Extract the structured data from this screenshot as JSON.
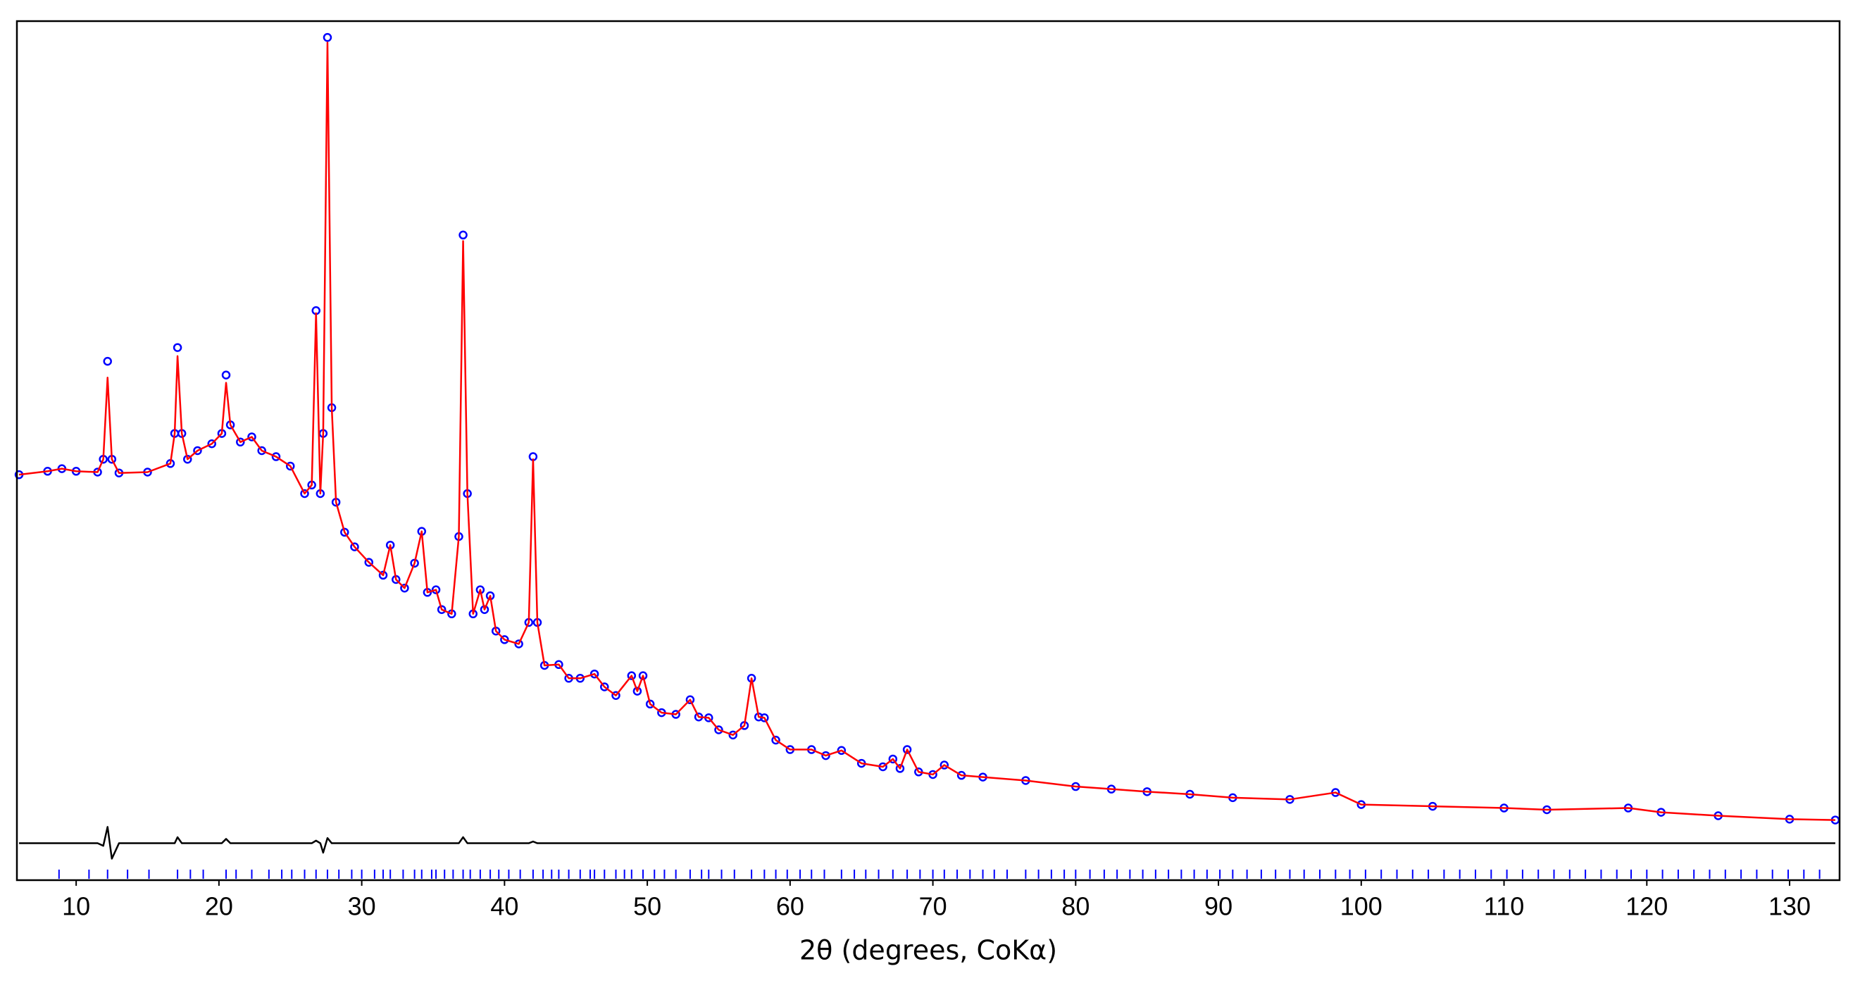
{
  "chart_data": {
    "type": "rietveld",
    "x_label": "2θ (degrees, CoKα)",
    "xlim": [
      5.85,
      133.5
    ],
    "xticks": [
      10,
      20,
      30,
      40,
      50,
      60,
      70,
      80,
      90,
      100,
      110,
      120,
      130
    ],
    "ylim": [
      0,
      100
    ],
    "x": [
      6,
      8,
      9,
      10,
      11.5,
      11.9,
      12.2,
      12.5,
      13,
      15,
      16.6,
      16.9,
      17.1,
      17.4,
      17.8,
      18.5,
      19.5,
      20.2,
      20.5,
      20.8,
      21.5,
      22.3,
      23,
      24,
      25,
      26,
      26.5,
      26.8,
      27.1,
      27.3,
      27.6,
      27.9,
      28.2,
      28.8,
      29.5,
      30.5,
      31.5,
      32.0,
      32.4,
      33,
      33.7,
      34.2,
      34.6,
      35.2,
      35.6,
      36.3,
      36.8,
      37.1,
      37.4,
      37.8,
      38.3,
      38.6,
      39.0,
      39.4,
      40,
      41,
      41.7,
      42.0,
      42.3,
      42.8,
      43.8,
      44.5,
      45.3,
      46.3,
      47,
      47.8,
      48.9,
      49.3,
      49.7,
      50.2,
      51,
      52,
      53.0,
      53.6,
      54.3,
      55,
      56,
      56.8,
      57.3,
      57.8,
      58.2,
      59,
      60,
      61.5,
      62.5,
      63.6,
      65,
      66.5,
      67.2,
      67.7,
      68.2,
      69,
      70,
      70.8,
      72,
      73.5,
      76.5,
      80,
      82.5,
      85,
      88,
      91,
      95,
      98.2,
      100,
      105,
      110,
      113,
      118.7,
      121,
      125,
      130,
      133.2
    ],
    "series": [
      {
        "style": "circles",
        "color": "#0000ff",
        "values": [
          47.2,
          47.6,
          47.9,
          47.6,
          47.5,
          49,
          60.4,
          49,
          47.4,
          47.5,
          48.5,
          52,
          62.0,
          52,
          49,
          50,
          50.8,
          52,
          58.8,
          53,
          51,
          51.6,
          50,
          49.3,
          48.2,
          45,
          46,
          66.3,
          45,
          52,
          98.1,
          55,
          44,
          40.5,
          38.8,
          37,
          35.5,
          39.0,
          35,
          34,
          36.9,
          40.6,
          33.5,
          33.8,
          31.5,
          31,
          40,
          75.1,
          45,
          31,
          33.8,
          31.5,
          33.1,
          29,
          28,
          27.5,
          30,
          49.3,
          30,
          25,
          25.1,
          23.5,
          23.5,
          24.0,
          22.5,
          21.5,
          23.8,
          22,
          23.8,
          20.5,
          19.5,
          19.3,
          21.0,
          19,
          18.9,
          17.5,
          16.9,
          18,
          23.5,
          19,
          18.9,
          16.3,
          15.2,
          15.2,
          14.5,
          15.1,
          13.6,
          13.2,
          14.1,
          13,
          15.2,
          12.6,
          12.3,
          13.4,
          12.2,
          12.0,
          11.6,
          10.9,
          10.6,
          10.3,
          10,
          9.6,
          9.4,
          10.2,
          8.8,
          8.6,
          8.4,
          8.2,
          8.4,
          7.9,
          7.5,
          7.1,
          7.0
        ]
      },
      {
        "style": "line",
        "color": "#ff0000",
        "values": [
          47.2,
          47.6,
          47.9,
          47.6,
          47.5,
          49,
          58.5,
          49,
          47.4,
          47.5,
          48.5,
          52,
          61.0,
          52,
          49,
          50,
          50.8,
          52,
          57.9,
          53,
          51,
          51.6,
          50,
          49.3,
          48.2,
          45,
          46,
          66.0,
          45,
          52,
          97.5,
          55,
          44,
          40.5,
          38.8,
          37,
          35.5,
          39.0,
          35,
          34,
          36.9,
          40.6,
          33.5,
          33.8,
          31.5,
          31,
          40,
          74.4,
          45,
          31,
          33.8,
          31.5,
          33.1,
          29,
          28,
          27.5,
          30,
          49.0,
          30,
          25,
          25.1,
          23.5,
          23.5,
          24.0,
          22.5,
          21.5,
          23.8,
          22,
          23.8,
          20.5,
          19.5,
          19.3,
          21.0,
          19,
          18.9,
          17.5,
          16.9,
          18,
          23.5,
          19,
          18.9,
          16.3,
          15.2,
          15.2,
          14.5,
          15.1,
          13.6,
          13.2,
          14.1,
          13,
          15.2,
          12.6,
          12.3,
          13.4,
          12.2,
          12.0,
          11.6,
          10.9,
          10.6,
          10.3,
          10,
          9.6,
          9.4,
          10.2,
          8.8,
          8.6,
          8.4,
          8.2,
          8.4,
          7.9,
          7.5,
          7.1,
          7.0
        ]
      },
      {
        "style": "line",
        "color": "#000000",
        "values": [
          4.3,
          4.3,
          4.3,
          4.3,
          4.3,
          4.0,
          6.2,
          2.5,
          4.3,
          4.3,
          4.3,
          4.3,
          5.0,
          4.3,
          4.3,
          4.3,
          4.3,
          4.3,
          4.8,
          4.3,
          4.3,
          4.3,
          4.3,
          4.3,
          4.3,
          4.3,
          4.3,
          4.6,
          4.3,
          3.2,
          4.9,
          4.3,
          4.3,
          4.3,
          4.3,
          4.3,
          4.3,
          4.3,
          4.3,
          4.3,
          4.3,
          4.3,
          4.3,
          4.3,
          4.3,
          4.3,
          4.3,
          5.0,
          4.3,
          4.3,
          4.3,
          4.3,
          4.3,
          4.3,
          4.3,
          4.3,
          4.3,
          4.5,
          4.3,
          4.3,
          4.3,
          4.3,
          4.3,
          4.3,
          4.3,
          4.3,
          4.3,
          4.3,
          4.3,
          4.3,
          4.3,
          4.3,
          4.3,
          4.3,
          4.3,
          4.3,
          4.3,
          4.3,
          4.3,
          4.3,
          4.3,
          4.3,
          4.3,
          4.3,
          4.3,
          4.3,
          4.3,
          4.3,
          4.3,
          4.3,
          4.3,
          4.3,
          4.3,
          4.3,
          4.3,
          4.3,
          4.3,
          4.3,
          4.3,
          4.3,
          4.3,
          4.3,
          4.3,
          4.3,
          4.3,
          4.3,
          4.3,
          4.3,
          4.3,
          4.3,
          4.3,
          4.3,
          4.3
        ]
      }
    ],
    "reflections": {
      "color": "#0000ff",
      "x": [
        8.8,
        10.9,
        12.2,
        13.6,
        15.1,
        17.1,
        18.0,
        18.9,
        20.5,
        21.2,
        22.3,
        23.5,
        24.4,
        25.1,
        26.0,
        26.8,
        27.6,
        28.4,
        29.3,
        30.0,
        30.9,
        31.5,
        32.0,
        32.9,
        33.7,
        34.2,
        34.9,
        35.2,
        35.8,
        36.4,
        37.1,
        37.6,
        38.3,
        39.0,
        39.6,
        40.3,
        41.1,
        42.0,
        42.7,
        43.3,
        43.8,
        44.5,
        45.3,
        46.0,
        46.3,
        47.0,
        47.8,
        48.4,
        48.9,
        49.7,
        50.5,
        51.2,
        52.0,
        53.0,
        53.8,
        54.3,
        55.2,
        56.1,
        57.3,
        58.2,
        59.0,
        59.8,
        60.7,
        61.5,
        62.4,
        63.6,
        64.5,
        65.3,
        66.2,
        67.2,
        68.2,
        69.1,
        70.0,
        70.8,
        71.7,
        72.6,
        73.5,
        74.3,
        75.2,
        76.5,
        77.4,
        78.3,
        79.2,
        80.0,
        81.0,
        82.0,
        82.9,
        83.8,
        84.7,
        85.6,
        86.5,
        87.4,
        88.3,
        89.2,
        90.1,
        91.0,
        92.0,
        93.0,
        94.0,
        95.0,
        96.0,
        97.1,
        98.2,
        99.2,
        100.3,
        101.4,
        102.5,
        103.6,
        104.7,
        105.8,
        106.9,
        108.0,
        109.1,
        110.2,
        111.3,
        112.4,
        113.5,
        114.6,
        115.7,
        116.8,
        117.9,
        118.9,
        120.0,
        121.1,
        122.2,
        123.3,
        124.4,
        125.5,
        126.6,
        127.7,
        128.8,
        129.9,
        131.0,
        132.1
      ]
    }
  }
}
